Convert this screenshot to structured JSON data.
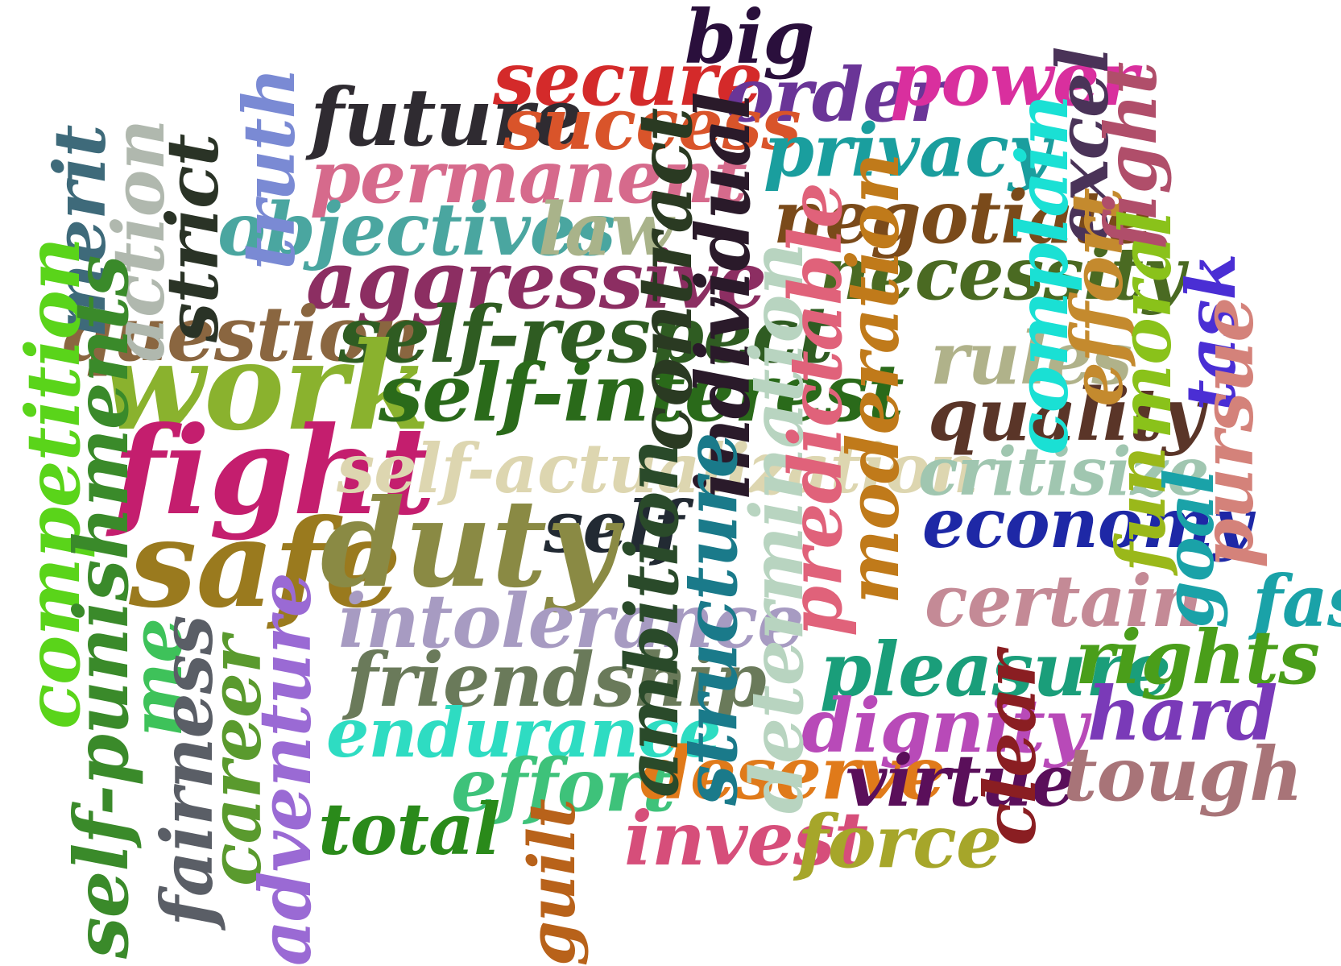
{
  "words": [
    {
      "text": "big",
      "color": "#2a0f3c"
    },
    {
      "text": "secure",
      "color": "#d42a2a"
    },
    {
      "text": "order",
      "color": "#6a3597"
    },
    {
      "text": "power",
      "color": "#d92f9e"
    },
    {
      "text": "future",
      "color": "#2f2b31"
    },
    {
      "text": "success",
      "color": "#d9542a"
    },
    {
      "text": "privacy",
      "color": "#1a9e9e"
    },
    {
      "text": "permanent",
      "color": "#d66a8c"
    },
    {
      "text": "objectives",
      "color": "#4aa6a0"
    },
    {
      "text": "law",
      "color": "#a9b38a"
    },
    {
      "text": "negotiate",
      "color": "#7a4a1a"
    },
    {
      "text": "aggressive",
      "color": "#8c2e62"
    },
    {
      "text": "necessity",
      "color": "#4a6a22"
    },
    {
      "text": "question",
      "color": "#8a6640"
    },
    {
      "text": "self-respect",
      "color": "#2f5c22"
    },
    {
      "text": "work",
      "color": "#8ab22e"
    },
    {
      "text": "self-interest",
      "color": "#2a6a1a"
    },
    {
      "text": "rules",
      "color": "#b0b28a"
    },
    {
      "text": "quality",
      "color": "#5a3528"
    },
    {
      "text": "fight",
      "color": "#c41e6e"
    },
    {
      "text": "self-actualization",
      "color": "#ddd6b0"
    },
    {
      "text": "critisize",
      "color": "#a0c6b0"
    },
    {
      "text": "self",
      "color": "#222a33"
    },
    {
      "text": "economy",
      "color": "#1e28a6"
    },
    {
      "text": "safe",
      "color": "#9a7a1e"
    },
    {
      "text": "duty",
      "color": "#8a8a44"
    },
    {
      "text": "certain",
      "color": "#c48a96"
    },
    {
      "text": "fast",
      "color": "#1aa2a8"
    },
    {
      "text": "intolerance",
      "color": "#a79bc2"
    },
    {
      "text": "friendship",
      "color": "#6a7a5a"
    },
    {
      "text": "pleasure",
      "color": "#1a9e7a"
    },
    {
      "text": "rights",
      "color": "#4a9e1a"
    },
    {
      "text": "endurance",
      "color": "#2edcc2"
    },
    {
      "text": "dignity",
      "color": "#b84ab8"
    },
    {
      "text": "hard",
      "color": "#7a3ab8"
    },
    {
      "text": "effort",
      "color": "#3ec27a"
    },
    {
      "text": "deserve",
      "color": "#e07a1a"
    },
    {
      "text": "virtue",
      "color": "#5a0f5a"
    },
    {
      "text": "tough",
      "color": "#a87478"
    },
    {
      "text": "total",
      "color": "#2a8a1a"
    },
    {
      "text": "invest",
      "color": "#d64e7a"
    },
    {
      "text": "force",
      "color": "#a6a62a"
    },
    {
      "text": "merit",
      "color": "#3e6a7a"
    },
    {
      "text": "action",
      "color": "#b0b8ae"
    },
    {
      "text": "strict",
      "color": "#2a3326"
    },
    {
      "text": "truth",
      "color": "#7a8ad4"
    },
    {
      "text": "competition",
      "color": "#5ad41a"
    },
    {
      "text": "self-punishments",
      "color": "#3a8a2a"
    },
    {
      "text": "me",
      "color": "#3ec25a"
    },
    {
      "text": "fairness",
      "color": "#5a5e66"
    },
    {
      "text": "career",
      "color": "#5a9a2e"
    },
    {
      "text": "adventure",
      "color": "#9a6ad4"
    },
    {
      "text": "guilt",
      "color": "#b8621a"
    },
    {
      "text": "ambition",
      "color": "#2a4a2a"
    },
    {
      "text": "contract",
      "color": "#2a3a22"
    },
    {
      "text": "individual",
      "color": "#2a1a2a"
    },
    {
      "text": "structure",
      "color": "#1a7a8a"
    },
    {
      "text": "determination",
      "color": "#b8d4c0"
    },
    {
      "text": "predictable",
      "color": "#e0627a"
    },
    {
      "text": "moderation",
      "color": "#c07a1a"
    },
    {
      "text": "clear",
      "color": "#8a1e22"
    },
    {
      "text": "complain",
      "color": "#1ae0d4"
    },
    {
      "text": "excel",
      "color": "#4a3358"
    },
    {
      "text": "effort",
      "color": "#c48a2e"
    },
    {
      "text": "fight",
      "color": "#b04e6a"
    },
    {
      "text": "moral",
      "color": "#8ac21a"
    },
    {
      "text": "task",
      "color": "#4a2ed4"
    },
    {
      "text": "pursue",
      "color": "#d4827a"
    },
    {
      "text": "fun",
      "color": "#9ab81a"
    },
    {
      "text": "goal",
      "color": "#1aa2a8"
    }
  ]
}
